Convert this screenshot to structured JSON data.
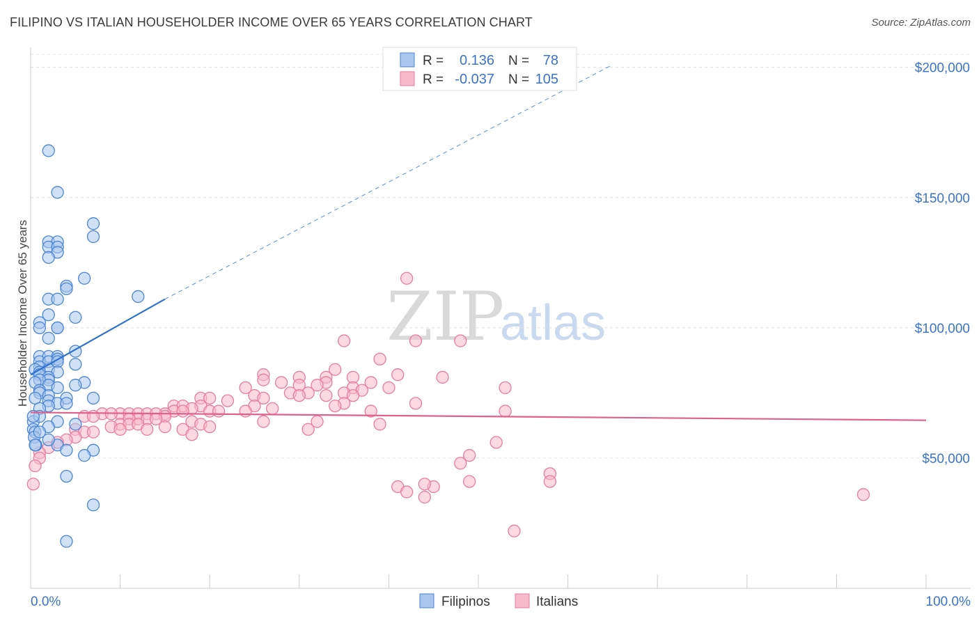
{
  "title": "FILIPINO VS ITALIAN HOUSEHOLDER INCOME OVER 65 YEARS CORRELATION CHART",
  "source": "Source: ZipAtlas.com",
  "watermark": {
    "zip": "ZIP",
    "atlas": "atlas"
  },
  "colors": {
    "filipino_fill": "#a9c7ec",
    "filipino_stroke": "#4a86d4",
    "filipino_line": "#2e72cc",
    "italian_fill": "#f7b9cc",
    "italian_stroke": "#e87ca0",
    "italian_line": "#e0608b",
    "grid": "#dddddd",
    "axis_text": "#3b73c8"
  },
  "legend": {
    "rows": [
      {
        "r_label": "R =",
        "r_value": "0.136",
        "n_label": "N =",
        "n_value": "78"
      },
      {
        "r_label": "R =",
        "r_value": "-0.037",
        "n_label": "N =",
        "n_value": "105"
      }
    ]
  },
  "bottom_legend": [
    "Filipinos",
    "Italians"
  ],
  "chart_data": {
    "type": "scatter",
    "title": "FILIPINO VS ITALIAN HOUSEHOLDER INCOME OVER 65 YEARS CORRELATION CHART",
    "xlabel": "",
    "ylabel": "Householder Income Over 65 years",
    "xlim": [
      0,
      100
    ],
    "ylim": [
      0,
      205000
    ],
    "x_tick_labels": [
      "0.0%",
      "100.0%"
    ],
    "y_ticks": [
      50000,
      100000,
      150000,
      200000
    ],
    "y_tick_labels": [
      "$50,000",
      "$100,000",
      "$150,000",
      "$200,000"
    ],
    "grid": true,
    "series": [
      {
        "name": "Filipinos",
        "r": 0.136,
        "n": 78,
        "trend": {
          "x0": 0,
          "y0": 82000,
          "x1": 15,
          "y1": 111000,
          "dashed_to_x": 65,
          "dashed_to_y": 201000
        },
        "points": [
          [
            2,
            168000
          ],
          [
            3,
            152000
          ],
          [
            7,
            140000
          ],
          [
            7,
            135000
          ],
          [
            2,
            133000
          ],
          [
            3,
            133000
          ],
          [
            2,
            131000
          ],
          [
            3,
            131000
          ],
          [
            3,
            129000
          ],
          [
            2,
            127000
          ],
          [
            6,
            119000
          ],
          [
            4,
            116000
          ],
          [
            4,
            115000
          ],
          [
            12,
            112000
          ],
          [
            2,
            111000
          ],
          [
            3,
            111000
          ],
          [
            2,
            105000
          ],
          [
            5,
            104000
          ],
          [
            1,
            102000
          ],
          [
            1,
            100000
          ],
          [
            3,
            100000
          ],
          [
            3,
            100000
          ],
          [
            2,
            96000
          ],
          [
            5,
            91000
          ],
          [
            1,
            89000
          ],
          [
            2,
            89000
          ],
          [
            3,
            89000
          ],
          [
            3,
            88000
          ],
          [
            3,
            88000
          ],
          [
            1,
            87000
          ],
          [
            2,
            87000
          ],
          [
            3,
            87000
          ],
          [
            5,
            86000
          ],
          [
            1,
            85000
          ],
          [
            2,
            84000
          ],
          [
            0.5,
            84000
          ],
          [
            1,
            83000
          ],
          [
            3,
            83000
          ],
          [
            1,
            82000
          ],
          [
            2,
            81000
          ],
          [
            2,
            80000
          ],
          [
            1,
            80000
          ],
          [
            0.5,
            79000
          ],
          [
            6,
            79000
          ],
          [
            2,
            78000
          ],
          [
            5,
            78000
          ],
          [
            3,
            77000
          ],
          [
            1,
            76000
          ],
          [
            1,
            75000
          ],
          [
            2,
            74000
          ],
          [
            0.5,
            73000
          ],
          [
            4,
            73000
          ],
          [
            7,
            73000
          ],
          [
            2,
            72000
          ],
          [
            3,
            71000
          ],
          [
            4,
            71000
          ],
          [
            2,
            70000
          ],
          [
            1,
            69000
          ],
          [
            0.3,
            64000
          ],
          [
            3,
            64000
          ],
          [
            5,
            63000
          ],
          [
            0.3,
            61000
          ],
          [
            0.5,
            60000
          ],
          [
            0.4,
            58000
          ],
          [
            3,
            55000
          ],
          [
            0.6,
            55000
          ],
          [
            4,
            53000
          ],
          [
            7,
            53000
          ],
          [
            6,
            51000
          ],
          [
            4,
            43000
          ],
          [
            7,
            32000
          ],
          [
            4,
            18000
          ],
          [
            0.5,
            55000
          ],
          [
            1,
            66000
          ],
          [
            2,
            62000
          ],
          [
            0.3,
            66000
          ],
          [
            2,
            57000
          ],
          [
            1,
            60000
          ]
        ]
      },
      {
        "name": "Italians",
        "r": -0.037,
        "n": 105,
        "trend": {
          "x0": 0,
          "y0": 67500,
          "x1": 100,
          "y1": 64500
        },
        "points": [
          [
            42,
            119000
          ],
          [
            35,
            95000
          ],
          [
            43,
            95000
          ],
          [
            48,
            95000
          ],
          [
            39,
            88000
          ],
          [
            34,
            84000
          ],
          [
            26,
            82000
          ],
          [
            41,
            82000
          ],
          [
            33,
            81000
          ],
          [
            36,
            81000
          ],
          [
            46,
            81000
          ],
          [
            30,
            81000
          ],
          [
            26,
            80000
          ],
          [
            28,
            79000
          ],
          [
            33,
            79000
          ],
          [
            38,
            79000
          ],
          [
            30,
            78000
          ],
          [
            32,
            78000
          ],
          [
            36,
            77000
          ],
          [
            40,
            77000
          ],
          [
            24,
            77000
          ],
          [
            53,
            77000
          ],
          [
            37,
            76000
          ],
          [
            29,
            75000
          ],
          [
            31,
            75000
          ],
          [
            35,
            75000
          ],
          [
            25,
            74000
          ],
          [
            30,
            74000
          ],
          [
            33,
            74000
          ],
          [
            36,
            74000
          ],
          [
            19,
            73000
          ],
          [
            20,
            73000
          ],
          [
            26,
            73000
          ],
          [
            22,
            72000
          ],
          [
            35,
            71000
          ],
          [
            43,
            71000
          ],
          [
            34,
            70000
          ],
          [
            25,
            70000
          ],
          [
            16,
            70000
          ],
          [
            17,
            70000
          ],
          [
            19,
            70000
          ],
          [
            18,
            69000
          ],
          [
            27,
            69000
          ],
          [
            20,
            68000
          ],
          [
            21,
            68000
          ],
          [
            16,
            68000
          ],
          [
            17,
            68000
          ],
          [
            24,
            68000
          ],
          [
            38,
            68000
          ],
          [
            53,
            68000
          ],
          [
            15,
            67000
          ],
          [
            10,
            67000
          ],
          [
            11,
            67000
          ],
          [
            12,
            67000
          ],
          [
            13,
            67000
          ],
          [
            14,
            67000
          ],
          [
            15,
            66000
          ],
          [
            8,
            67000
          ],
          [
            9,
            67000
          ],
          [
            6,
            66000
          ],
          [
            7,
            66000
          ],
          [
            12,
            65000
          ],
          [
            13,
            65000
          ],
          [
            11,
            65000
          ],
          [
            14,
            65000
          ],
          [
            18,
            64000
          ],
          [
            26,
            64000
          ],
          [
            39,
            63000
          ],
          [
            32,
            64000
          ],
          [
            10,
            63000
          ],
          [
            11,
            63000
          ],
          [
            12,
            63000
          ],
          [
            15,
            62000
          ],
          [
            19,
            63000
          ],
          [
            20,
            62000
          ],
          [
            9,
            62000
          ],
          [
            10,
            61000
          ],
          [
            13,
            61000
          ],
          [
            17,
            61000
          ],
          [
            31,
            61000
          ],
          [
            5,
            61000
          ],
          [
            6,
            60000
          ],
          [
            7,
            60000
          ],
          [
            18,
            59000
          ],
          [
            5,
            58000
          ],
          [
            4,
            57000
          ],
          [
            3,
            56000
          ],
          [
            2,
            54000
          ],
          [
            1,
            52000
          ],
          [
            1,
            50000
          ],
          [
            0.5,
            47000
          ],
          [
            0.3,
            40000
          ],
          [
            49,
            51000
          ],
          [
            48,
            48000
          ],
          [
            52,
            56000
          ],
          [
            58,
            44000
          ],
          [
            58,
            41000
          ],
          [
            49,
            41000
          ],
          [
            45,
            39000
          ],
          [
            44,
            40000
          ],
          [
            41,
            39000
          ],
          [
            42,
            37000
          ],
          [
            44,
            35000
          ],
          [
            93,
            36000
          ],
          [
            54,
            22000
          ]
        ]
      }
    ]
  }
}
